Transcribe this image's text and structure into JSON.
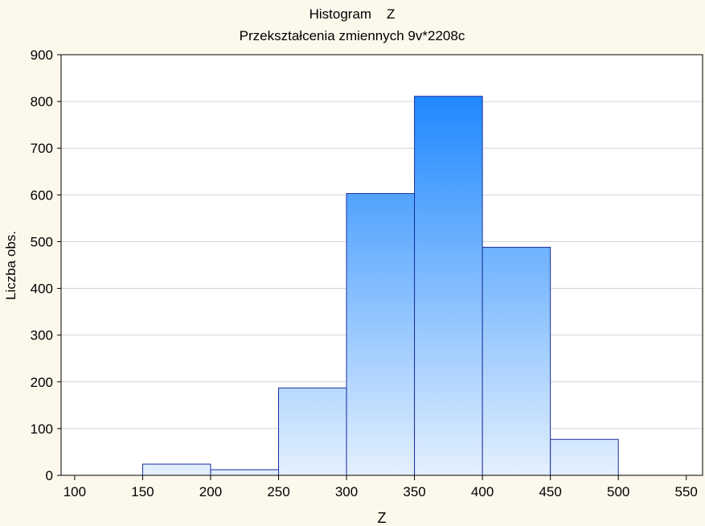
{
  "chart_data": {
    "type": "bar",
    "title": "Histogram    Z",
    "subtitle": "Przekształcenia zmiennych 9v*2208c",
    "xlabel": "Z",
    "ylabel": "Liczba obs.",
    "xlim": [
      90,
      562
    ],
    "ylim": [
      0,
      900
    ],
    "x_ticks": [
      100,
      150,
      200,
      250,
      300,
      350,
      400,
      450,
      500,
      550
    ],
    "y_ticks": [
      0,
      100,
      200,
      300,
      400,
      500,
      600,
      700,
      800,
      900
    ],
    "grid": true,
    "bins": [
      {
        "from": 150,
        "to": 200,
        "value": 24
      },
      {
        "from": 200,
        "to": 250,
        "value": 12
      },
      {
        "from": 250,
        "to": 300,
        "value": 187
      },
      {
        "from": 300,
        "to": 350,
        "value": 603
      },
      {
        "from": 350,
        "to": 400,
        "value": 811
      },
      {
        "from": 400,
        "to": 450,
        "value": 488
      },
      {
        "from": 450,
        "to": 500,
        "value": 77
      }
    ],
    "colors": {
      "background": "#fdf8ec",
      "plot_background": "#ffffff",
      "bar_top": "#1e88ff",
      "bar_bottom": "#e4f0fd",
      "bar_edge": "#1a2fa0",
      "grid": "#d4d4d4"
    }
  }
}
